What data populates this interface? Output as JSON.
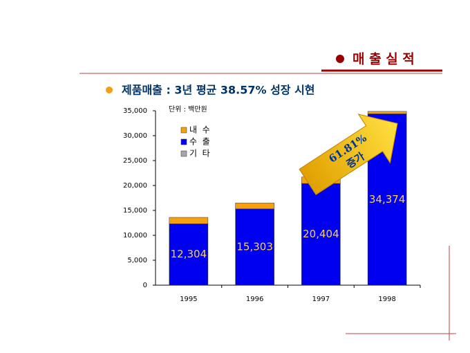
{
  "chart_data": {
    "type": "bar",
    "stacked": true,
    "title": "매 출 실 적",
    "subtitle": "제품매출 : 3년 평균 38.57% 성장 시현",
    "unit_label": "단위 : 백만원",
    "annotation": {
      "line1": "61.81%",
      "line2": "증가"
    },
    "categories": [
      "1995",
      "1996",
      "1997",
      "1998"
    ],
    "series": [
      {
        "name": "내  수",
        "color": "#f5a011",
        "values": [
          1300,
          1200,
          1300,
          500
        ]
      },
      {
        "name": "수  출",
        "color": "#0000f0",
        "values": [
          12304,
          15303,
          20404,
          34374
        ],
        "value_labels": [
          "12,304",
          "15,303",
          "20,404",
          "34,374"
        ]
      },
      {
        "name": "기  타",
        "color": "#a6a6a6",
        "values": [
          0,
          0,
          0,
          0
        ]
      }
    ],
    "ylim": [
      0,
      35000
    ],
    "yticks": [
      0,
      {
        "value": 5000,
        "label": "5,000"
      },
      {
        "value": 10000,
        "label": "10,000"
      },
      {
        "value": 15000,
        "label": "15,000"
      },
      {
        "value": 20000,
        "label": "20,000"
      },
      {
        "value": 25000,
        "label": "25,000"
      },
      {
        "value": 30000,
        "label": "30,000"
      },
      {
        "value": 35000,
        "label": "35,000"
      }
    ]
  }
}
